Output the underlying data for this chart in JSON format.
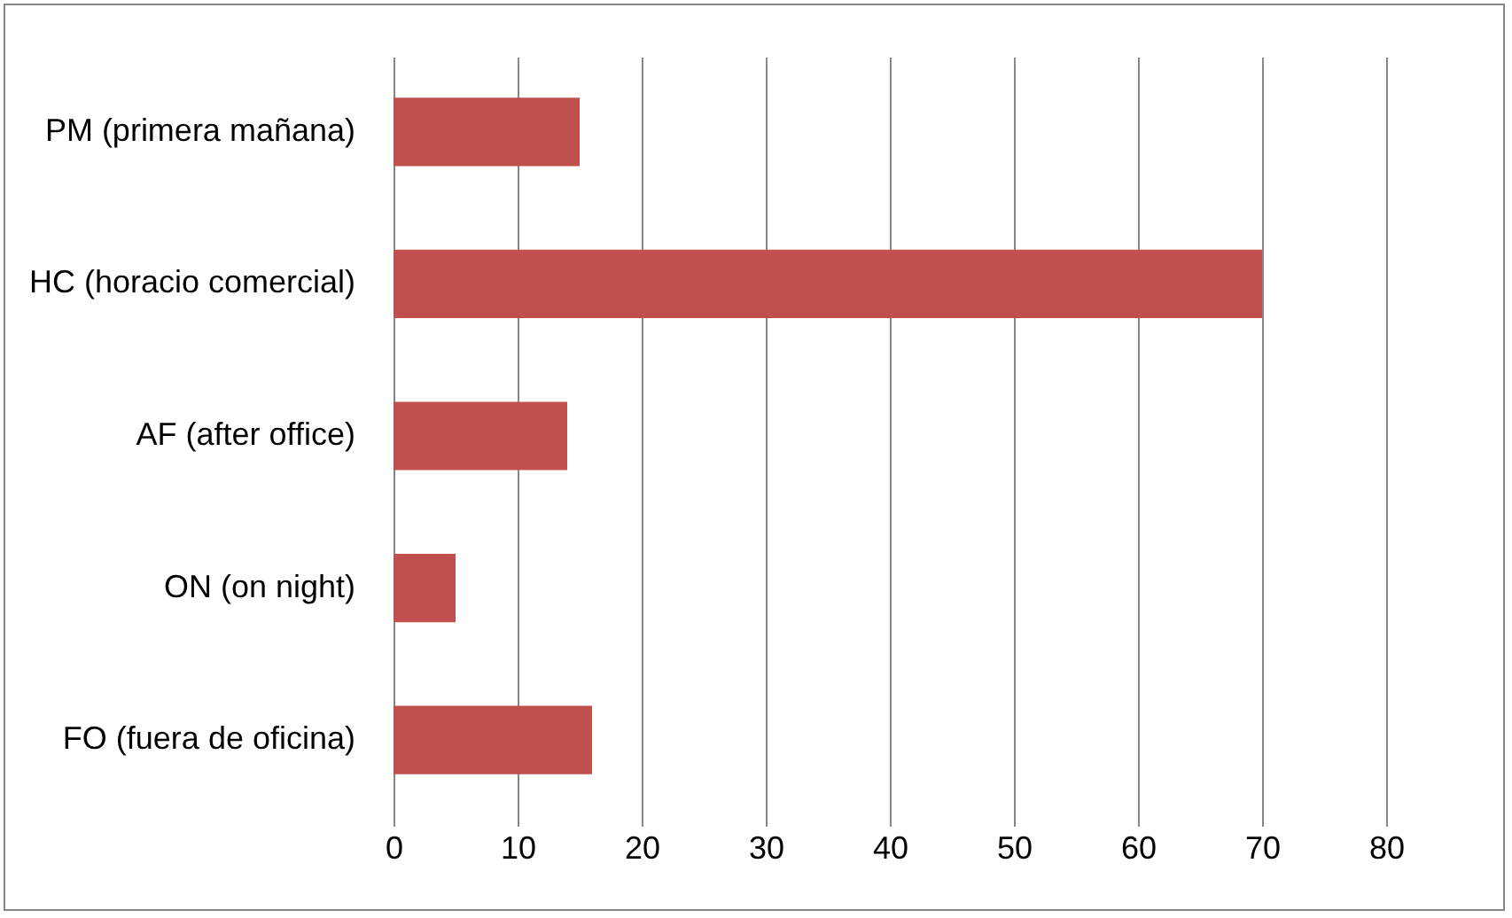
{
  "chart_data": {
    "type": "bar",
    "orientation": "horizontal",
    "categories": [
      "PM (primera mañana)",
      "HC (horacio comercial)",
      "AF (after office)",
      "ON (on night)",
      "FO (fuera de oficina)"
    ],
    "values": [
      15,
      70,
      14,
      5,
      16
    ],
    "color": "#c0504d",
    "xlim": [
      0,
      80
    ],
    "xticks": [
      0,
      10,
      20,
      30,
      40,
      50,
      60,
      70,
      80
    ],
    "grid": "x"
  }
}
